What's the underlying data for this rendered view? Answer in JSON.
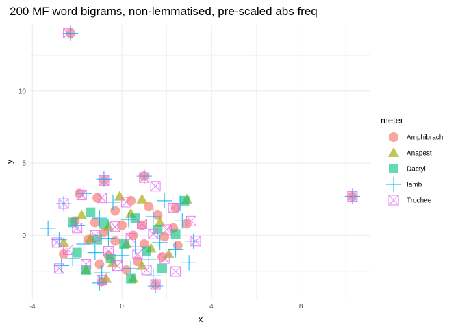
{
  "chart_data": {
    "type": "scatter",
    "title": "200 MF word bigrams, non-lemmatised, pre-scaled abs freq",
    "xlabel": "x",
    "ylabel": "y",
    "xlim": [
      -4.1,
      11.1
    ],
    "ylim": [
      -4.4,
      14.6
    ],
    "x_ticks": [
      -4,
      0,
      4,
      8
    ],
    "y_ticks": [
      0,
      5,
      10
    ],
    "grid": true,
    "legend": {
      "title": "meter",
      "position": "right"
    },
    "series": [
      {
        "name": "Amphibrach",
        "color": "#F8766D",
        "marker": "circle",
        "points": [
          [
            -2.3,
            14.0
          ],
          [
            10.3,
            2.7
          ],
          [
            1.0,
            4.1
          ],
          [
            -0.8,
            3.8
          ],
          [
            -1.9,
            2.9
          ],
          [
            -1.1,
            2.6
          ],
          [
            0.4,
            2.4
          ],
          [
            1.2,
            2.0
          ],
          [
            2.4,
            1.9
          ],
          [
            -0.3,
            1.7
          ],
          [
            1.6,
            1.4
          ],
          [
            -2.1,
            1.0
          ],
          [
            -1.2,
            0.9
          ],
          [
            0.0,
            0.7
          ],
          [
            0.9,
            0.7
          ],
          [
            2.3,
            0.5
          ],
          [
            2.9,
            0.8
          ],
          [
            -0.8,
            0.2
          ],
          [
            0.5,
            0.0
          ],
          [
            1.9,
            -0.1
          ],
          [
            -1.5,
            -0.3
          ],
          [
            -0.3,
            -0.4
          ],
          [
            1.0,
            -0.6
          ],
          [
            2.5,
            -0.7
          ],
          [
            -2.6,
            -1.3
          ],
          [
            -0.6,
            -1.4
          ],
          [
            0.7,
            -1.8
          ],
          [
            1.8,
            -1.5
          ],
          [
            -1.0,
            -2.0
          ],
          [
            0.2,
            -2.4
          ],
          [
            -0.9,
            -3.2
          ],
          [
            1.5,
            -3.4
          ]
        ]
      },
      {
        "name": "Anapest",
        "color": "#A3A500",
        "marker": "triangle",
        "points": [
          [
            -0.1,
            2.7
          ],
          [
            2.9,
            2.5
          ],
          [
            0.9,
            2.5
          ],
          [
            -1.8,
            1.4
          ],
          [
            0.4,
            1.5
          ],
          [
            1.7,
            0.9
          ],
          [
            -0.6,
            0.6
          ],
          [
            -2.6,
            -0.5
          ],
          [
            -1.4,
            -0.2
          ],
          [
            0.2,
            -0.6
          ],
          [
            1.3,
            -0.9
          ],
          [
            2.1,
            -1.3
          ],
          [
            -0.4,
            -1.9
          ],
          [
            0.9,
            -2.1
          ],
          [
            -1.6,
            -2.4
          ],
          [
            -0.7,
            -3.0
          ],
          [
            0.5,
            -3.0
          ]
        ]
      },
      {
        "name": "Dactyl",
        "color": "#00BF7D",
        "marker": "square",
        "points": [
          [
            2.8,
            2.4
          ],
          [
            -1.4,
            1.6
          ],
          [
            0.6,
            1.2
          ],
          [
            -2.2,
            0.9
          ],
          [
            -0.8,
            0.8
          ],
          [
            1.6,
            0.4
          ],
          [
            2.4,
            0.1
          ],
          [
            -1.1,
            -0.3
          ],
          [
            0.1,
            -0.6
          ],
          [
            1.1,
            -1.1
          ],
          [
            -2.0,
            -1.2
          ],
          [
            -0.5,
            -1.6
          ],
          [
            -1.6,
            -2.4
          ],
          [
            0.4,
            -3.0
          ],
          [
            1.8,
            -2.3
          ]
        ]
      },
      {
        "name": "Iamb",
        "color": "#00B0F6",
        "marker": "plus",
        "points": [
          [
            -2.3,
            14.0
          ],
          [
            10.3,
            2.7
          ],
          [
            1.0,
            4.1
          ],
          [
            -0.8,
            3.9
          ],
          [
            -2.6,
            2.2
          ],
          [
            -1.7,
            2.9
          ],
          [
            -0.4,
            2.3
          ],
          [
            1.9,
            2.4
          ],
          [
            2.6,
            2.2
          ],
          [
            -3.3,
            0.5
          ],
          [
            -2.0,
            0.7
          ],
          [
            -1.0,
            1.2
          ],
          [
            0.3,
            1.1
          ],
          [
            1.4,
            1.3
          ],
          [
            2.7,
            1.0
          ],
          [
            3.2,
            -0.4
          ],
          [
            -2.8,
            -0.3
          ],
          [
            -1.7,
            -0.6
          ],
          [
            -0.6,
            -0.2
          ],
          [
            0.6,
            -0.8
          ],
          [
            1.7,
            -0.5
          ],
          [
            2.4,
            -1.0
          ],
          [
            -2.2,
            -1.6
          ],
          [
            -1.2,
            -1.2
          ],
          [
            0.0,
            -1.4
          ],
          [
            1.2,
            -1.7
          ],
          [
            3.0,
            -1.9
          ],
          [
            -2.7,
            -2.1
          ],
          [
            -0.9,
            -2.6
          ],
          [
            0.4,
            -2.3
          ],
          [
            1.4,
            -2.8
          ],
          [
            -1.0,
            -3.3
          ],
          [
            1.5,
            -3.5
          ]
        ]
      },
      {
        "name": "Trochee",
        "color": "#E76BF3",
        "marker": "boxx",
        "points": [
          [
            -2.4,
            14.0
          ],
          [
            10.3,
            2.7
          ],
          [
            1.5,
            3.4
          ],
          [
            -0.8,
            3.8
          ],
          [
            1.0,
            4.0
          ],
          [
            -2.6,
            2.2
          ],
          [
            -1.8,
            2.8
          ],
          [
            -0.9,
            2.6
          ],
          [
            0.2,
            2.3
          ],
          [
            2.3,
            1.9
          ],
          [
            -2.0,
            0.5
          ],
          [
            -0.3,
            0.6
          ],
          [
            0.9,
            0.8
          ],
          [
            2.0,
            0.4
          ],
          [
            3.1,
            1.0
          ],
          [
            -2.9,
            -0.5
          ],
          [
            -1.2,
            0.0
          ],
          [
            0.4,
            -0.2
          ],
          [
            1.4,
            0.1
          ],
          [
            3.3,
            -0.4
          ],
          [
            -2.4,
            -1.0
          ],
          [
            -0.6,
            -1.1
          ],
          [
            0.7,
            -1.3
          ],
          [
            1.9,
            -1.6
          ],
          [
            -2.8,
            -2.3
          ],
          [
            -1.6,
            -2.0
          ],
          [
            -0.2,
            -2.1
          ],
          [
            1.1,
            -2.4
          ],
          [
            2.4,
            -2.5
          ],
          [
            -0.9,
            -3.1
          ],
          [
            1.5,
            -3.4
          ]
        ]
      }
    ]
  }
}
